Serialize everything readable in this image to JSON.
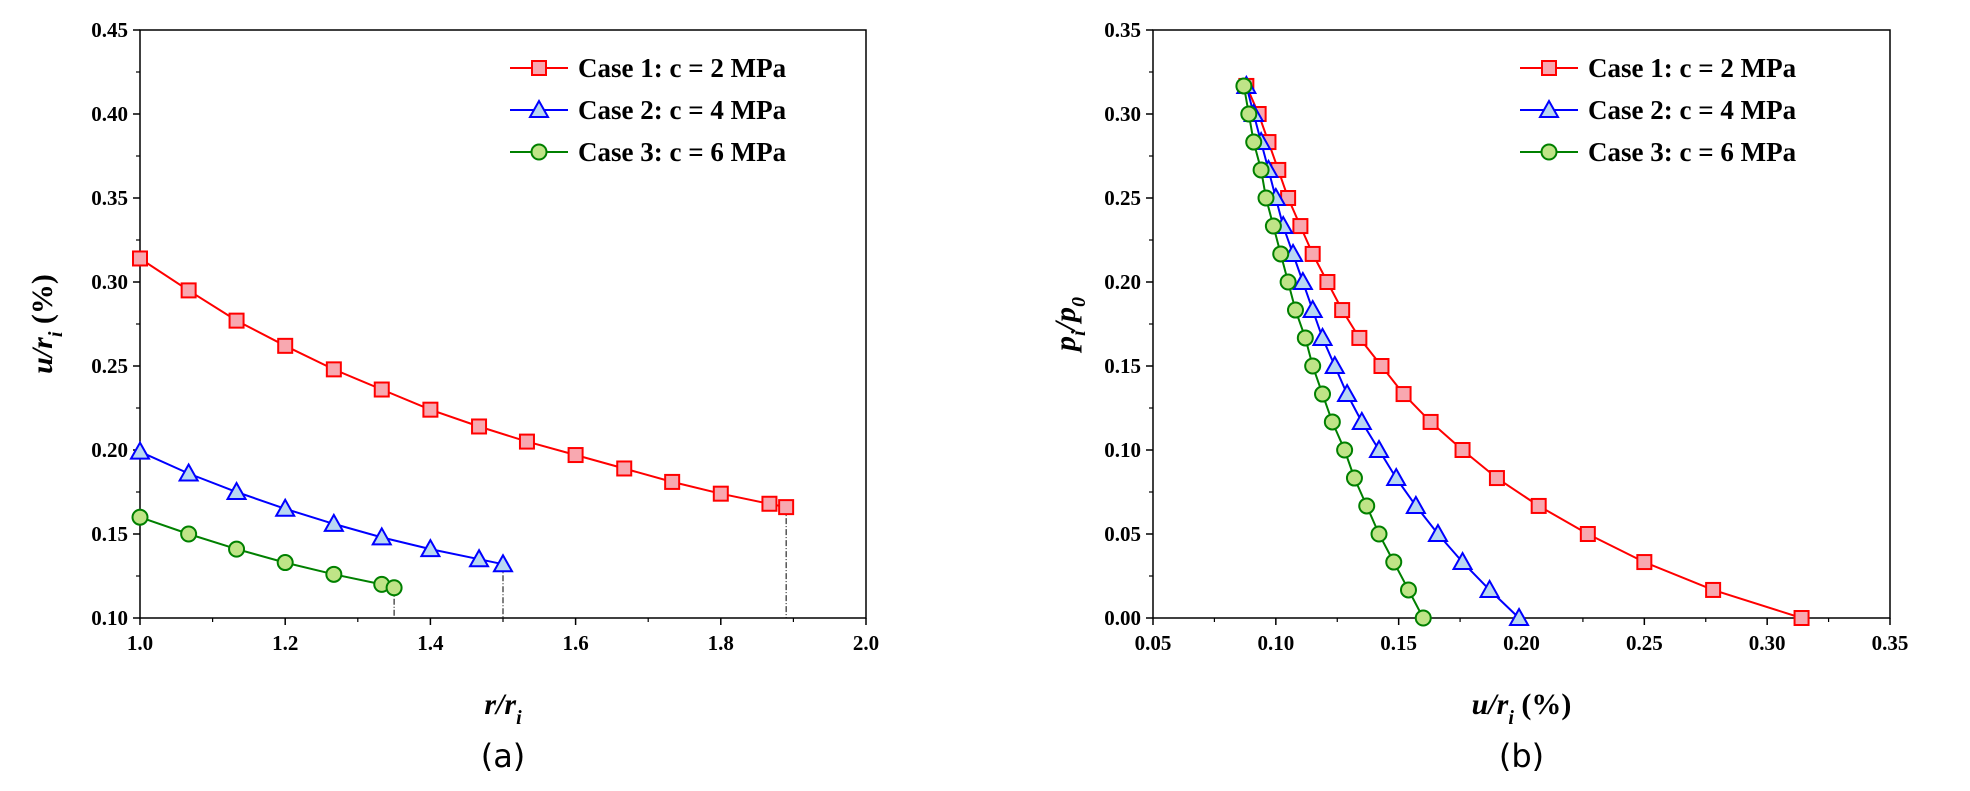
{
  "chart_data": [
    {
      "type": "line",
      "panel_label": "(a)",
      "xlabel": {
        "main": "r/r",
        "sub": "i",
        "unit": ""
      },
      "ylabel": {
        "main": "u/r",
        "sub": "i",
        "unit": " (%)"
      },
      "xlim": [
        1.0,
        2.0
      ],
      "ylim": [
        0.1,
        0.45
      ],
      "xticks": [
        "1.0",
        "1.2",
        "1.4",
        "1.6",
        "1.8",
        "2.0"
      ],
      "yticks": [
        "0.10",
        "0.15",
        "0.20",
        "0.25",
        "0.30",
        "0.35",
        "0.40",
        "0.45"
      ],
      "legend_position": "top-right",
      "series": [
        {
          "name": "Case 1: c = 2 MPa",
          "color": "#ff0000",
          "marker": "square",
          "x": [
            1.0,
            1.067,
            1.133,
            1.2,
            1.267,
            1.333,
            1.4,
            1.467,
            1.533,
            1.6,
            1.667,
            1.733,
            1.8,
            1.867,
            1.89
          ],
          "y": [
            0.314,
            0.295,
            0.277,
            0.262,
            0.248,
            0.236,
            0.224,
            0.214,
            0.205,
            0.197,
            0.189,
            0.181,
            0.174,
            0.168,
            0.166
          ]
        },
        {
          "name": "Case 2: c = 4 MPa",
          "color": "#0000ff",
          "marker": "triangle",
          "x": [
            1.0,
            1.067,
            1.133,
            1.2,
            1.267,
            1.333,
            1.4,
            1.467,
            1.5
          ],
          "y": [
            0.199,
            0.186,
            0.175,
            0.165,
            0.156,
            0.148,
            0.141,
            0.135,
            0.132
          ]
        },
        {
          "name": "Case 3: c = 6 MPa",
          "color": "#008000",
          "marker": "circle",
          "x": [
            1.0,
            1.067,
            1.133,
            1.2,
            1.267,
            1.333,
            1.35
          ],
          "y": [
            0.16,
            0.15,
            0.141,
            0.133,
            0.126,
            0.12,
            0.118
          ]
        }
      ],
      "dropline_x": [
        1.35,
        1.5,
        1.89
      ]
    },
    {
      "type": "line",
      "panel_label": "(b)",
      "xlabel": {
        "main": "u/r",
        "sub": "i",
        "unit": " (%)"
      },
      "ylabel": {
        "main": "p",
        "sub": "i",
        "main2": "/p",
        "sub2": "0"
      },
      "xlim": [
        0.05,
        0.35
      ],
      "ylim": [
        0.0,
        0.35
      ],
      "xticks": [
        "0.05",
        "0.10",
        "0.15",
        "0.20",
        "0.25",
        "0.30",
        "0.35"
      ],
      "yticks": [
        "0.00",
        "0.05",
        "0.10",
        "0.15",
        "0.20",
        "0.25",
        "0.30",
        "0.35"
      ],
      "legend_position": "top-right",
      "series": [
        {
          "name": "Case 1: c = 2 MPa",
          "color": "#ff0000",
          "marker": "square",
          "x": [
            0.314,
            0.278,
            0.25,
            0.227,
            0.207,
            0.19,
            0.176,
            0.163,
            0.152,
            0.143,
            0.134,
            0.127,
            0.121,
            0.115,
            0.11,
            0.105,
            0.101,
            0.097,
            0.093,
            0.088
          ],
          "y": [
            0.0,
            0.0167,
            0.0333,
            0.05,
            0.0667,
            0.0833,
            0.1,
            0.1167,
            0.1333,
            0.15,
            0.1667,
            0.1833,
            0.2,
            0.2167,
            0.2333,
            0.25,
            0.2667,
            0.2833,
            0.3,
            0.3167
          ]
        },
        {
          "name": "Case 2: c = 4 MPa",
          "color": "#0000ff",
          "marker": "triangle",
          "x": [
            0.199,
            0.187,
            0.176,
            0.166,
            0.157,
            0.149,
            0.142,
            0.135,
            0.129,
            0.124,
            0.119,
            0.115,
            0.111,
            0.107,
            0.103,
            0.1,
            0.097,
            0.094,
            0.091,
            0.088
          ],
          "y": [
            0.0,
            0.0167,
            0.0333,
            0.05,
            0.0667,
            0.0833,
            0.1,
            0.1167,
            0.1333,
            0.15,
            0.1667,
            0.1833,
            0.2,
            0.2167,
            0.2333,
            0.25,
            0.2667,
            0.2833,
            0.3,
            0.3167
          ]
        },
        {
          "name": "Case 3: c = 6 MPa",
          "color": "#008000",
          "marker": "circle",
          "x": [
            0.16,
            0.154,
            0.148,
            0.142,
            0.137,
            0.132,
            0.128,
            0.123,
            0.119,
            0.115,
            0.112,
            0.108,
            0.105,
            0.102,
            0.099,
            0.096,
            0.094,
            0.091,
            0.089,
            0.087
          ],
          "y": [
            0.0,
            0.0167,
            0.0333,
            0.05,
            0.0667,
            0.0833,
            0.1,
            0.1167,
            0.1333,
            0.15,
            0.1667,
            0.1833,
            0.2,
            0.2167,
            0.2333,
            0.25,
            0.2667,
            0.2833,
            0.3,
            0.3167
          ]
        }
      ]
    }
  ]
}
